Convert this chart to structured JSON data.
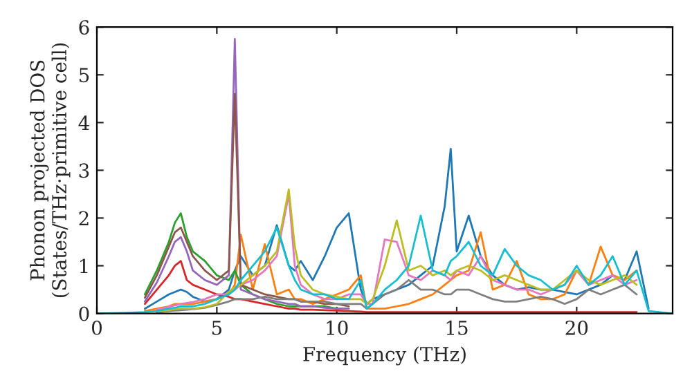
{
  "chart_data": {
    "type": "line",
    "xlabel": "Frequency (THz)",
    "ylabel": "Phonon projected DOS\n(States/THz·primitive cell)",
    "x": [
      0,
      1,
      2,
      2.5,
      3,
      3.25,
      3.5,
      3.75,
      4,
      4.5,
      5,
      5.5,
      5.75,
      6,
      6.5,
      7,
      7.5,
      8,
      8.25,
      8.5,
      9,
      9.5,
      10,
      10.5,
      11,
      11.25,
      11.5,
      12,
      12.5,
      13,
      13.5,
      14,
      14.5,
      14.75,
      15,
      15.5,
      16,
      16.5,
      17,
      17.5,
      18,
      18.5,
      19,
      19.5,
      20,
      20.5,
      21,
      21.5,
      22,
      22.5,
      23,
      24
    ],
    "series": [
      {
        "color": "#1f77b4",
        "values": [
          null,
          null,
          0.1,
          0.25,
          0.4,
          0.45,
          0.5,
          0.45,
          0.35,
          0.25,
          0.3,
          0.5,
          0.9,
          1.2,
          0.8,
          1.0,
          1.85,
          1.0,
          0.9,
          1.1,
          0.7,
          1.2,
          1.8,
          2.1,
          0.5,
          0.2,
          0.3,
          0.4,
          0.5,
          0.6,
          0.8,
          1.0,
          2.25,
          3.45,
          1.3,
          2.05,
          1.2,
          0.8,
          0.6,
          0.5,
          0.55,
          0.5,
          0.5,
          0.45,
          0.4,
          0.5,
          0.6,
          0.8,
          0.7,
          1.3,
          0.1,
          null
        ]
      },
      {
        "color": "#ff7f0e",
        "values": [
          null,
          null,
          0.05,
          0.1,
          0.15,
          0.2,
          0.2,
          0.2,
          0.2,
          0.25,
          0.3,
          0.4,
          0.6,
          1.65,
          0.5,
          1.45,
          0.4,
          0.5,
          0.3,
          0.3,
          0.2,
          0.3,
          0.4,
          0.5,
          0.8,
          0.1,
          0.1,
          0.1,
          0.15,
          0.2,
          0.3,
          0.4,
          0.6,
          0.7,
          0.8,
          0.9,
          1.7,
          0.5,
          0.6,
          1.1,
          0.4,
          0.3,
          0.3,
          0.4,
          0.9,
          0.6,
          1.4,
          0.8,
          0.7,
          0.9,
          null,
          null
        ]
      },
      {
        "color": "#2ca02c",
        "values": [
          null,
          null,
          0.4,
          0.9,
          1.5,
          1.9,
          2.1,
          1.6,
          1.3,
          1.1,
          0.8,
          0.7,
          0.9,
          0.6,
          0.4,
          0.3,
          0.2,
          0.15,
          0.15,
          0.15,
          0.15,
          0.15,
          0.1,
          0.1,
          null,
          null,
          null,
          null,
          null,
          null,
          null,
          null,
          null,
          null,
          null,
          null,
          null,
          null,
          null,
          null,
          null,
          null,
          null,
          null,
          null,
          null,
          null,
          null,
          null,
          null,
          null,
          null
        ]
      },
      {
        "color": "#d62728",
        "values": [
          null,
          null,
          0.2,
          0.5,
          0.8,
          1.0,
          1.1,
          0.7,
          0.6,
          0.5,
          0.4,
          0.35,
          0.3,
          0.3,
          0.25,
          0.2,
          0.15,
          0.1,
          0.1,
          0.08,
          0.08,
          0.07,
          0.06,
          0.05,
          0.04,
          0.03,
          0.03,
          0.03,
          0.03,
          0.03,
          0.03,
          0.03,
          0.03,
          0.03,
          0.03,
          0.03,
          0.03,
          0.03,
          0.03,
          0.03,
          0.03,
          0.03,
          0.03,
          0.03,
          0.03,
          0.03,
          0.03,
          0.03,
          0.03,
          0.03,
          null,
          null
        ]
      },
      {
        "color": "#9467bd",
        "values": [
          null,
          null,
          0.25,
          0.65,
          1.2,
          1.5,
          1.6,
          1.3,
          0.9,
          0.7,
          0.6,
          0.8,
          5.75,
          0.5,
          0.4,
          0.3,
          0.25,
          0.2,
          0.2,
          0.15,
          0.15,
          0.12,
          0.1,
          0.1,
          null,
          null,
          null,
          null,
          null,
          null,
          null,
          null,
          null,
          null,
          null,
          null,
          null,
          null,
          null,
          null,
          null,
          null,
          null,
          null,
          null,
          null,
          null,
          null,
          null,
          null,
          null,
          null
        ]
      },
      {
        "color": "#8c564b",
        "values": [
          null,
          null,
          0.33,
          0.8,
          1.4,
          1.7,
          1.8,
          1.5,
          1.2,
          0.9,
          0.7,
          0.9,
          4.6,
          0.6,
          0.5,
          0.4,
          0.35,
          0.3,
          0.3,
          0.25,
          0.25,
          0.2,
          0.2,
          0.15,
          null,
          null,
          null,
          null,
          null,
          null,
          null,
          null,
          null,
          null,
          null,
          null,
          null,
          null,
          null,
          null,
          null,
          null,
          null,
          null,
          null,
          null,
          null,
          null,
          null,
          null,
          null,
          null
        ]
      },
      {
        "color": "#e377c2",
        "values": [
          null,
          null,
          null,
          0.08,
          0.14,
          0.17,
          0.2,
          0.22,
          0.24,
          0.3,
          0.4,
          0.4,
          0.5,
          0.6,
          0.7,
          0.9,
          1.2,
          2.5,
          1.0,
          0.6,
          0.4,
          0.3,
          0.3,
          0.4,
          0.4,
          0.2,
          0.2,
          1.55,
          1.5,
          0.8,
          0.7,
          0.9,
          0.8,
          0.7,
          0.9,
          0.8,
          1.2,
          0.7,
          0.6,
          0.5,
          0.5,
          0.4,
          0.5,
          0.6,
          0.9,
          0.6,
          0.7,
          0.8,
          0.6,
          0.7,
          null,
          null
        ]
      },
      {
        "color": "#7f7f7f",
        "values": [
          null,
          null,
          null,
          0.02,
          0.05,
          0.06,
          0.07,
          0.08,
          0.09,
          0.12,
          0.18,
          0.25,
          0.3,
          0.3,
          0.3,
          0.35,
          0.3,
          0.3,
          0.3,
          0.25,
          0.25,
          0.25,
          0.2,
          0.2,
          0.2,
          0.1,
          0.2,
          0.4,
          0.5,
          0.7,
          0.5,
          0.5,
          0.4,
          0.4,
          0.5,
          0.5,
          0.4,
          0.3,
          0.25,
          0.25,
          0.3,
          0.35,
          0.3,
          0.2,
          0.3,
          0.5,
          0.4,
          0.5,
          0.6,
          0.4,
          null,
          null
        ]
      },
      {
        "color": "#bcbd22",
        "values": [
          null,
          null,
          null,
          0.04,
          0.07,
          0.09,
          0.1,
          0.1,
          0.1,
          0.13,
          0.2,
          0.45,
          0.55,
          0.6,
          0.8,
          1.0,
          1.3,
          2.6,
          1.4,
          0.8,
          0.5,
          0.4,
          0.35,
          0.3,
          0.3,
          0.2,
          0.3,
          1.0,
          1.95,
          0.9,
          1.0,
          0.8,
          0.9,
          0.8,
          0.9,
          1.0,
          0.9,
          0.7,
          0.8,
          0.7,
          0.6,
          0.5,
          0.5,
          0.7,
          0.9,
          0.7,
          0.6,
          0.7,
          0.8,
          0.6,
          null,
          null
        ]
      },
      {
        "color": "#17becf",
        "values": [
          0,
          0.01,
          0.03,
          0.05,
          0.1,
          0.12,
          0.15,
          0.15,
          0.15,
          0.2,
          0.3,
          0.4,
          0.5,
          0.7,
          1.0,
          1.3,
          1.8,
          1.0,
          0.7,
          0.5,
          0.4,
          0.4,
          0.3,
          0.3,
          0.7,
          0.1,
          0.2,
          0.5,
          0.7,
          1.0,
          2.05,
          0.9,
          0.8,
          1.1,
          1.2,
          1.5,
          1.0,
          0.8,
          1.35,
          1.0,
          0.8,
          0.7,
          0.5,
          0.6,
          1.0,
          0.6,
          0.8,
          1.2,
          0.6,
          0.9,
          0.05,
          0
        ]
      }
    ],
    "xlim": [
      0,
      24
    ],
    "ylim": [
      0,
      6
    ],
    "xticks": [
      0,
      5,
      10,
      15,
      20
    ],
    "yticks": [
      0,
      1,
      2,
      3,
      4,
      5,
      6
    ],
    "grid": false,
    "legend": false
  }
}
